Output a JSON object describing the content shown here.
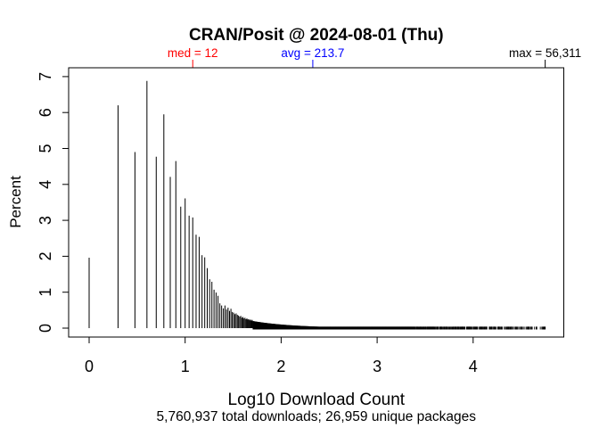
{
  "page": {
    "background_color": "#ffffff"
  },
  "chart_data": {
    "type": "bar",
    "subtype": "spike-histogram (R base graphics, type='h')",
    "title": "CRAN/Posit @ 2024-08-01 (Thu)",
    "xlabel": "Log10 Download Count",
    "xlabel_sub": "5,760,937 total downloads; 26,959 unique packages",
    "ylabel": "Percent",
    "x_ticks": [
      "0",
      "1",
      "2",
      "3",
      "4"
    ],
    "x_tick_values": [
      0,
      1,
      2,
      3,
      4
    ],
    "y_ticks": [
      "0",
      "1",
      "2",
      "3",
      "4",
      "5",
      "6",
      "7"
    ],
    "y_tick_values": [
      0,
      1,
      2,
      3,
      4,
      5,
      6,
      7
    ],
    "xlim": [
      -0.21,
      4.97
    ],
    "ylim": [
      0,
      7
    ],
    "grid": false,
    "legend": "none",
    "bar_color": "#000000",
    "x_axis_meaning": "log10 of download count per package",
    "y_axis_meaning": "percent of unique packages",
    "totals": {
      "total_downloads": 5760937,
      "unique_packages": 26959
    },
    "annotations": {
      "median": {
        "label": "med = 12",
        "value": 12,
        "log10": 1.07918,
        "color": "#ff0000"
      },
      "mean": {
        "label": "avg = 213.7",
        "value": 213.7,
        "log10": 2.3298,
        "color": "#0000ff"
      },
      "max": {
        "label": "max = 56,311",
        "value": 56311,
        "log10": 4.75057,
        "color": "#000000"
      }
    },
    "spikes_comment": "pairs of [download_count, percent_of_packages]; x position = log10(count)",
    "spikes": [
      [
        1,
        1.96
      ],
      [
        2,
        6.2
      ],
      [
        3,
        4.9
      ],
      [
        4,
        6.88
      ],
      [
        5,
        4.77
      ],
      [
        6,
        5.95
      ],
      [
        7,
        4.21
      ],
      [
        8,
        4.65
      ],
      [
        9,
        3.38
      ],
      [
        10,
        3.61
      ],
      [
        11,
        3.13
      ],
      [
        12,
        3.08
      ],
      [
        13,
        2.6
      ],
      [
        14,
        2.54
      ],
      [
        15,
        2.03
      ],
      [
        16,
        1.97
      ],
      [
        17,
        1.67
      ],
      [
        18,
        1.36
      ],
      [
        19,
        1.29
      ],
      [
        20,
        1.07
      ],
      [
        21,
        0.99
      ],
      [
        22,
        0.9
      ],
      [
        23,
        0.69
      ],
      [
        24,
        0.63
      ],
      [
        25,
        0.55
      ],
      [
        26,
        0.63
      ],
      [
        27,
        0.52
      ],
      [
        28,
        0.57
      ],
      [
        29,
        0.48
      ],
      [
        30,
        0.54
      ],
      [
        31,
        0.45
      ],
      [
        32,
        0.43
      ],
      [
        33,
        0.39
      ],
      [
        34,
        0.41
      ],
      [
        35,
        0.37
      ],
      [
        36,
        0.35
      ],
      [
        37,
        0.32
      ],
      [
        38,
        0.34
      ],
      [
        39,
        0.29
      ],
      [
        40,
        0.31
      ],
      [
        41,
        0.27
      ],
      [
        42,
        0.29
      ],
      [
        43,
        0.25
      ],
      [
        44,
        0.27
      ],
      [
        45,
        0.24
      ],
      [
        46,
        0.25
      ],
      [
        47,
        0.22
      ],
      [
        48,
        0.24
      ],
      [
        49,
        0.21
      ],
      [
        50,
        0.23
      ]
    ],
    "tail": {
      "comment": "near-zero density band of tiny spikes from count 51 up to max count; becomes sparse/dashed at right end",
      "log10_start": 1.7076,
      "log10_end": 4.75057,
      "height_pct_formula": "10 / count",
      "min_height_pct": 0.04,
      "solid_until_log10": 3.35
    }
  }
}
